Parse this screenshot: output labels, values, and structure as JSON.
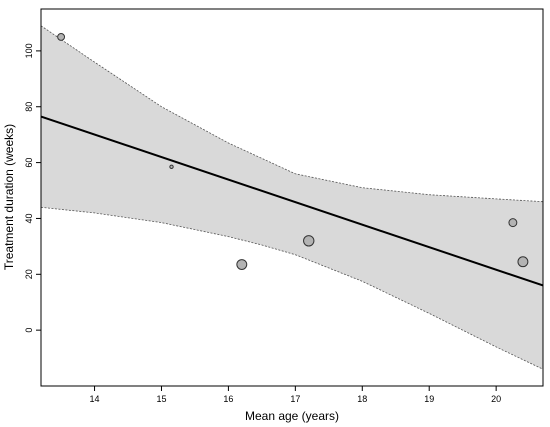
{
  "chart_data": {
    "type": "scatter",
    "title": "",
    "xlabel": "Mean age (years)",
    "ylabel": "Treatment duration (weeks)",
    "xlim": [
      13.2,
      20.7
    ],
    "ylim": [
      -20,
      115
    ],
    "x_ticks": [
      14,
      15,
      16,
      17,
      18,
      19,
      20
    ],
    "y_ticks": [
      0,
      20,
      40,
      60,
      80,
      100
    ],
    "grid": false,
    "legend": "none",
    "points": [
      {
        "x": 13.5,
        "y": 105,
        "weight": 0.45
      },
      {
        "x": 15.15,
        "y": 58.5,
        "weight": 0.1
      },
      {
        "x": 16.2,
        "y": 23.5,
        "weight": 0.75
      },
      {
        "x": 17.2,
        "y": 32,
        "weight": 0.8
      },
      {
        "x": 20.25,
        "y": 38.5,
        "weight": 0.55
      },
      {
        "x": 20.4,
        "y": 24.5,
        "weight": 0.75
      }
    ],
    "regression_line": {
      "x": [
        13.2,
        20.7
      ],
      "y": [
        76.5,
        16
      ]
    },
    "confidence_band": {
      "x": [
        13.2,
        14.0,
        15.0,
        16.0,
        16.5,
        17.0,
        18.0,
        19.0,
        20.0,
        20.7
      ],
      "upper": [
        109,
        96,
        80,
        67,
        61.5,
        56,
        51,
        48.5,
        47,
        46
      ],
      "lower": [
        44,
        42,
        38.5,
        33.5,
        30.5,
        27,
        17.5,
        6,
        -6,
        -14
      ]
    },
    "colors": {
      "band_fill": "#d9d9d9",
      "band_border": "#555555",
      "point_fill": "#b3b3b3",
      "point_stroke": "#333333",
      "line": "#000000"
    }
  }
}
